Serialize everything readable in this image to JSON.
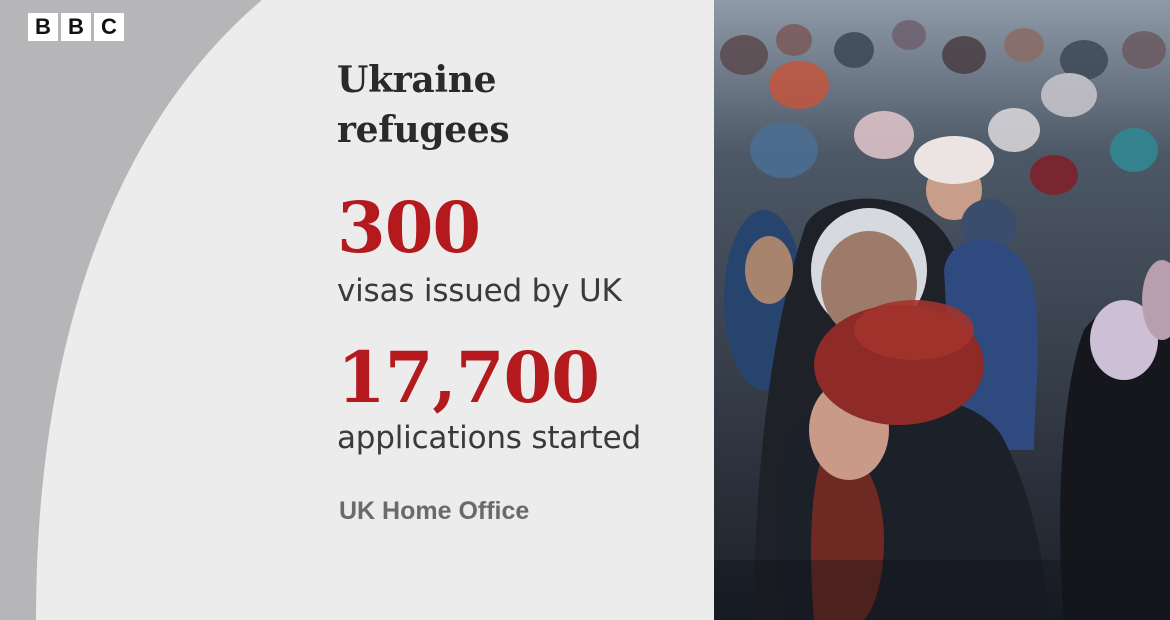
{
  "logo": {
    "letters": [
      "B",
      "B",
      "C"
    ]
  },
  "headline": {
    "line1": "Ukraine",
    "line2": "refugees"
  },
  "stats": [
    {
      "value": "300",
      "label": "visas issued by UK"
    },
    {
      "value": "17,700",
      "label": "applications started"
    }
  ],
  "source": "UK Home Office",
  "photo": {
    "subject": "crowd-of-refugees-photo"
  },
  "colors": {
    "accent_red": "#b3191d",
    "panel_bg": "#ececec",
    "grey_bg": "#b6b6b8"
  }
}
